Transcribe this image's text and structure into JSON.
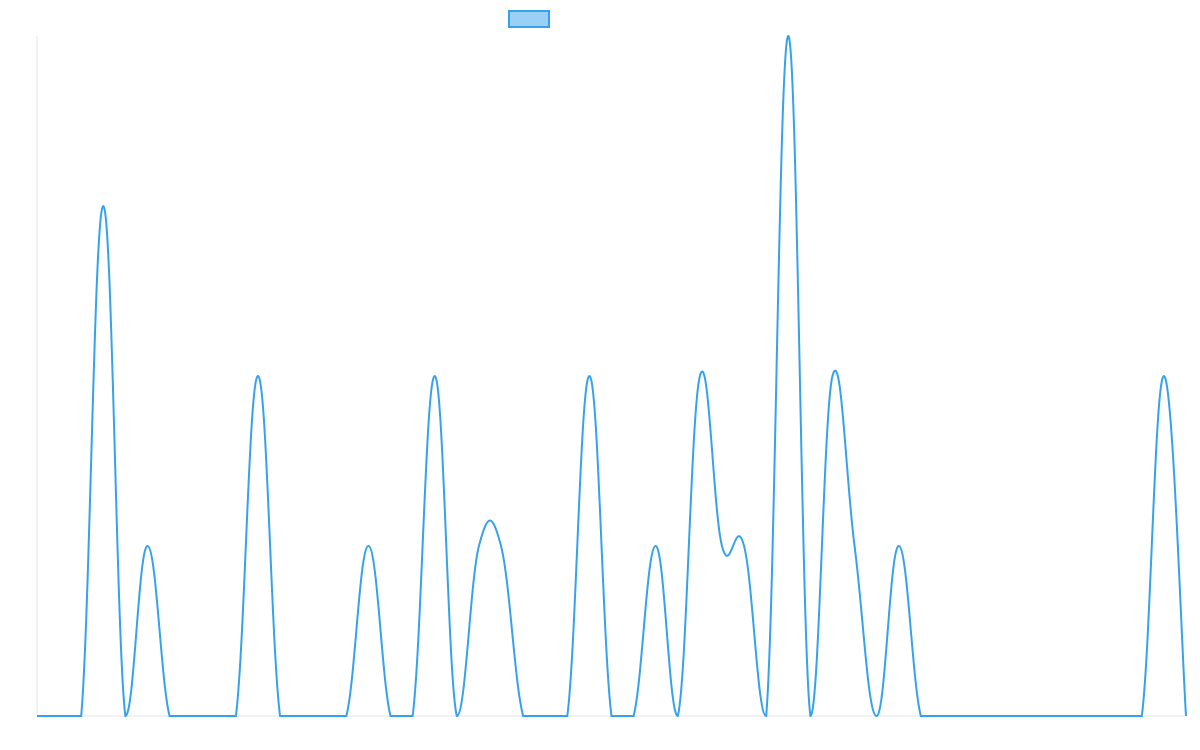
{
  "chart_data": {
    "type": "line",
    "title": "",
    "xlabel": "",
    "ylabel": "",
    "ylim": [
      0,
      4
    ],
    "grid": false,
    "legend": {
      "placement": "top-center",
      "entries": [
        ""
      ]
    },
    "series": [
      {
        "name": "",
        "color": "#36a2eb",
        "fill": "#9ad0f5",
        "smooth": true,
        "values": [
          0,
          0,
          0,
          3,
          0,
          1,
          0,
          0,
          0,
          0,
          2,
          0,
          0,
          0,
          0,
          1,
          0,
          0,
          2,
          0,
          1,
          1,
          0,
          0,
          0,
          2,
          0,
          0,
          1,
          0,
          2,
          1,
          1,
          0,
          4,
          0,
          2,
          1,
          0,
          1,
          0,
          0,
          0,
          0,
          0,
          0,
          0,
          0,
          0,
          0,
          0,
          2,
          0
        ]
      }
    ]
  }
}
